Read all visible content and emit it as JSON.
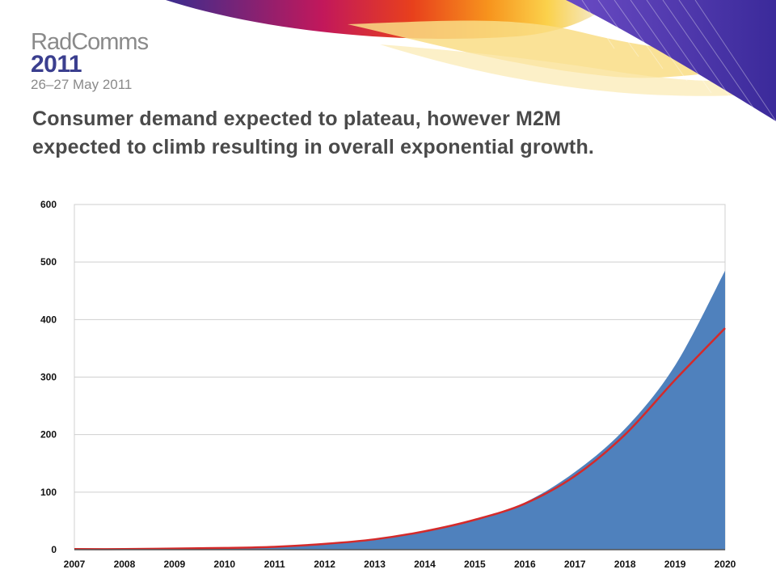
{
  "slide": {
    "logo": {
      "name": "RadComms",
      "year": "2011",
      "dates": "26–27 May 2011"
    },
    "headline_line1": "Consumer demand expected to plateau, however M2M",
    "headline_line2": "expected to climb resulting in overall exponential growth."
  },
  "colors": {
    "area_fill": "#4f81bd",
    "line": "#d42a2a",
    "grid": "#cfcfcf",
    "headline": "#4a4a4a",
    "logo_year": "#3b3f8f"
  },
  "chart_data": {
    "type": "area",
    "x": [
      "2007",
      "2008",
      "2009",
      "2010",
      "2011",
      "2012",
      "2013",
      "2014",
      "2015",
      "2016",
      "2017",
      "2018",
      "2019",
      "2020"
    ],
    "series": [
      {
        "type": "area",
        "values": [
          1,
          1,
          2,
          3,
          5,
          10,
          18,
          32,
          52,
          82,
          135,
          210,
          320,
          485
        ]
      },
      {
        "type": "line",
        "values": [
          1,
          1,
          2,
          3,
          5,
          10,
          18,
          32,
          52,
          80,
          128,
          200,
          295,
          385
        ]
      }
    ],
    "y_ticks": [
      0,
      100,
      200,
      300,
      400,
      500,
      600
    ],
    "ylim": [
      0,
      600
    ],
    "grid": true,
    "title": "",
    "xlabel": "",
    "ylabel": ""
  }
}
